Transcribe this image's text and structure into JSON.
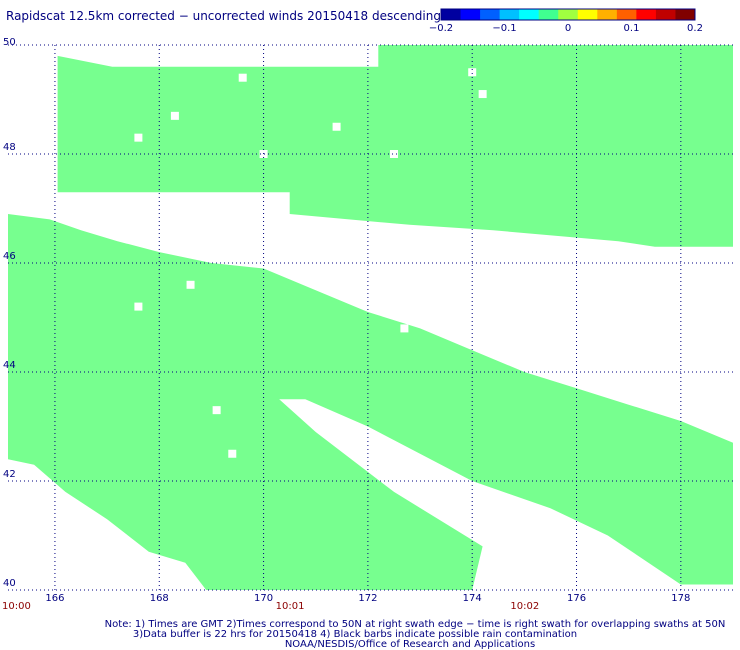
{
  "title": "Rapidscat 12.5km corrected − uncorrected winds 20150418 descending",
  "colorbar": {
    "colors": [
      "#0000a0",
      "#0000ff",
      "#0060ff",
      "#00c0ff",
      "#00ffff",
      "#40ff90",
      "#a0ff40",
      "#ffff00",
      "#ffb000",
      "#ff6000",
      "#ff0000",
      "#c00000",
      "#800000"
    ],
    "tick_labels": [
      "−0.2",
      "−0.1",
      "0",
      "0.1",
      "0.2"
    ]
  },
  "note_lines": [
    "Note: 1) Times are GMT 2)Times correspond to 50N at right swath edge − time is right swath for overlapping swaths at 50N",
    "3)Data buffer is 22 hrs for 20150418 4) Black barbs indicate possible rain contamination",
    "NOAA/NESDIS/Office of Research and Applications"
  ],
  "chart_data": {
    "type": "heatmap",
    "title": "Rapidscat 12.5km corrected − uncorrected winds 20150418 descending",
    "xlim": [
      165.1,
      179.0
    ],
    "ylim": [
      40.0,
      50.0
    ],
    "x_ticks": [
      166,
      168,
      170,
      172,
      174,
      176,
      178
    ],
    "y_ticks": [
      40,
      42,
      44,
      46,
      48,
      50
    ],
    "time_ticks": [
      {
        "lon": 165.1,
        "label": "10:00"
      },
      {
        "lon": 170.5,
        "label": "10:01"
      },
      {
        "lon": 175.0,
        "label": "10:02"
      }
    ],
    "grid": true,
    "fill_color": "#77ff8f",
    "value_shown": 0.0,
    "swaths": [
      {
        "name": "north",
        "upper": [
          [
            166.05,
            49.8
          ],
          [
            167.1,
            49.6
          ],
          [
            168.8,
            49.6
          ],
          [
            172.2,
            49.6
          ],
          [
            172.2,
            50.0
          ],
          [
            179.0,
            50.0
          ]
        ],
        "lower": [
          [
            166.05,
            47.3
          ],
          [
            170.5,
            47.3
          ],
          [
            170.5,
            46.9
          ],
          [
            172.8,
            46.7
          ],
          [
            174.4,
            46.6
          ],
          [
            176.8,
            46.4
          ],
          [
            177.5,
            46.3
          ],
          [
            179.0,
            46.3
          ]
        ]
      },
      {
        "name": "south",
        "upper": [
          [
            165.1,
            46.9
          ],
          [
            165.9,
            46.8
          ],
          [
            166.5,
            46.6
          ],
          [
            167.2,
            46.4
          ],
          [
            168.0,
            46.2
          ],
          [
            169.0,
            46.0
          ],
          [
            170.0,
            45.9
          ],
          [
            171.0,
            45.5
          ],
          [
            172.0,
            45.1
          ],
          [
            173.0,
            44.8
          ],
          [
            174.0,
            44.4
          ],
          [
            175.0,
            44.0
          ],
          [
            176.0,
            43.7
          ],
          [
            177.0,
            43.4
          ],
          [
            178.0,
            43.1
          ],
          [
            179.0,
            42.7
          ]
        ],
        "lower": [
          [
            165.1,
            42.4
          ],
          [
            165.6,
            42.3
          ],
          [
            166.2,
            41.8
          ],
          [
            167.0,
            41.3
          ],
          [
            167.8,
            40.7
          ],
          [
            168.5,
            40.5
          ],
          [
            168.9,
            40.0
          ],
          [
            174.0,
            40.0
          ],
          [
            174.2,
            40.8
          ],
          [
            172.5,
            41.8
          ],
          [
            171.0,
            42.9
          ],
          [
            170.3,
            43.5
          ],
          [
            170.8,
            43.5
          ],
          [
            172.0,
            43.0
          ],
          [
            174.0,
            42.0
          ],
          [
            175.5,
            41.5
          ],
          [
            176.6,
            41.0
          ],
          [
            178.0,
            40.1
          ],
          [
            179.0,
            40.1
          ]
        ]
      }
    ],
    "gaps": [
      [
        167.6,
        48.3
      ],
      [
        168.3,
        48.7
      ],
      [
        169.6,
        49.4
      ],
      [
        170.0,
        48.0
      ],
      [
        171.4,
        48.5
      ],
      [
        172.5,
        48.0
      ],
      [
        174.0,
        49.5
      ],
      [
        174.2,
        49.1
      ],
      [
        168.6,
        45.6
      ],
      [
        167.6,
        45.2
      ],
      [
        172.7,
        44.8
      ],
      [
        169.1,
        43.3
      ],
      [
        169.4,
        42.5
      ]
    ]
  }
}
